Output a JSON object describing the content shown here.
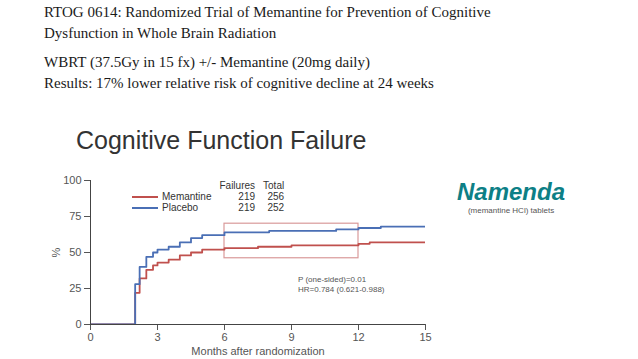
{
  "slide": {
    "lines": [
      "RTOG 0614: Randomized Trial of Memantine for Prevention of Cognitive",
      "Dysfunction in Whole Brain Radiation",
      "WBRT (37.5Gy in 15 fx) +/- Memantine (20mg daily)",
      "Results: 17% lower relative risk of cognitive decline at 24 weeks"
    ]
  },
  "logo": {
    "name": "Namenda",
    "subtitle": "(memantine HCl) tablets"
  },
  "chart_data": {
    "type": "line",
    "title": "Cognitive Function Failure",
    "x_label": "Months after randomization",
    "y_label": "%",
    "xlim": [
      0,
      15
    ],
    "xticks": [
      0,
      3,
      6,
      9,
      12,
      15
    ],
    "ylim": [
      0,
      100
    ],
    "yticks": [
      0,
      25,
      50,
      75,
      100
    ],
    "grid": false,
    "line_style": "step",
    "legend_headers": [
      "Failures",
      "Total"
    ],
    "series": [
      {
        "name": "Memantine",
        "color": "#c0504d",
        "failures": 219,
        "total": 256,
        "x": [
          0,
          1.8,
          2.0,
          2.2,
          2.5,
          2.8,
          3.0,
          3.5,
          4.0,
          4.5,
          5.0,
          6.0,
          7.5,
          9.0,
          12.0,
          12.5,
          15
        ],
        "values": [
          0,
          0,
          22,
          32,
          38,
          41,
          43,
          45,
          48,
          50,
          52,
          53,
          54,
          55,
          56,
          57,
          57
        ]
      },
      {
        "name": "Placebo",
        "color": "#4a6fb5",
        "failures": 219,
        "total": 252,
        "x": [
          0,
          1.8,
          2.0,
          2.2,
          2.5,
          2.8,
          3.0,
          3.5,
          4.0,
          4.5,
          5.0,
          6.0,
          8.0,
          11.0,
          12.0,
          13.0,
          15
        ],
        "values": [
          0,
          0,
          28,
          40,
          47,
          50,
          52,
          54,
          57,
          60,
          62,
          64,
          65,
          66,
          67,
          68,
          68
        ]
      }
    ],
    "highlight_box": {
      "x": [
        6,
        12
      ],
      "y": [
        46,
        70
      ]
    },
    "annotations": [
      "P (one-sided)=0.01",
      "HR=0.784 (0.621-0.988)"
    ]
  }
}
